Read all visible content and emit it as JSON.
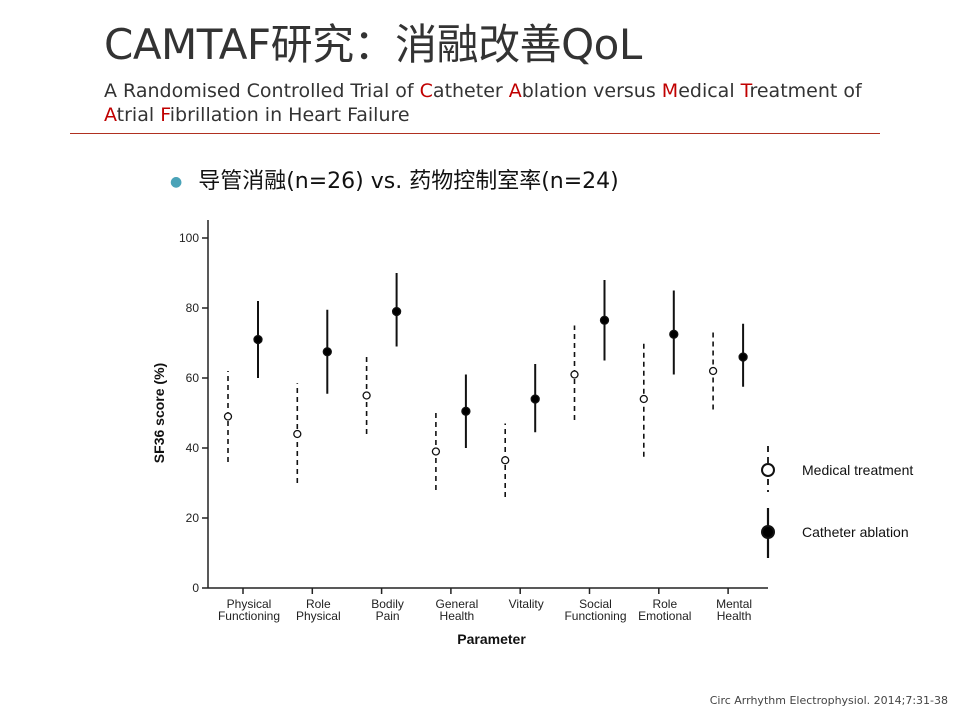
{
  "title": "CAMTAF研究：消融改善QoL",
  "subtitle": [
    {
      "t": "A Randomised Controlled Trial of ",
      "hl": false
    },
    {
      "t": "C",
      "hl": true
    },
    {
      "t": "atheter ",
      "hl": false
    },
    {
      "t": "A",
      "hl": true
    },
    {
      "t": "blation versus ",
      "hl": false
    },
    {
      "t": "M",
      "hl": true
    },
    {
      "t": "edical ",
      "hl": false
    },
    {
      "t": "T",
      "hl": true
    },
    {
      "t": "reatment of ",
      "hl": false
    },
    {
      "t": "A",
      "hl": true
    },
    {
      "t": "trial ",
      "hl": false
    },
    {
      "t": "F",
      "hl": true
    },
    {
      "t": "ibrillation in Heart Failure",
      "hl": false
    }
  ],
  "bullet": "导管消融(n=26) vs. 药物控制室率(n=24)",
  "citation": "Circ Arrhythm Electrophysiol. 2014;7:31-38",
  "colors": {
    "title": "#333333",
    "highlight": "#c00000",
    "divider": "#b03020",
    "bullet_dot": "#4aa3b8"
  },
  "chart_data": {
    "type": "scatter",
    "subtype": "mean-with-error-bars",
    "ylabel": "SF36 score (%)",
    "xlabel": "Parameter",
    "ylim": [
      0,
      100
    ],
    "yticks": [
      0,
      20,
      40,
      60,
      80,
      100
    ],
    "categories": [
      [
        "Physical",
        "Functioning"
      ],
      [
        "Role",
        "Physical"
      ],
      [
        "Bodily",
        "Pain"
      ],
      [
        "General",
        "Health"
      ],
      [
        "Vitality"
      ],
      [
        "Social",
        "Functioning"
      ],
      [
        "Role",
        "Emotional"
      ],
      [
        "Mental",
        "Health"
      ]
    ],
    "series": [
      {
        "name": "Medical treatment",
        "marker": "open-circle",
        "line": "dashed",
        "mean": [
          49,
          44,
          55,
          39,
          36.5,
          61,
          54,
          62
        ],
        "lower": [
          36,
          30,
          44,
          28,
          26,
          48,
          37.5,
          51
        ],
        "upper": [
          62,
          58.5,
          67,
          50,
          47,
          75,
          70,
          73.5
        ]
      },
      {
        "name": "Catheter ablation",
        "marker": "filled-circle",
        "line": "solid",
        "mean": [
          71,
          67.5,
          79,
          50.5,
          54,
          76.5,
          72.5,
          66
        ],
        "lower": [
          60,
          55.5,
          69,
          40,
          44.5,
          65,
          61,
          57.5
        ],
        "upper": [
          82,
          79.5,
          90,
          61,
          64,
          88,
          85,
          75.5
        ]
      }
    ],
    "legend_position": "right",
    "grid": false
  }
}
